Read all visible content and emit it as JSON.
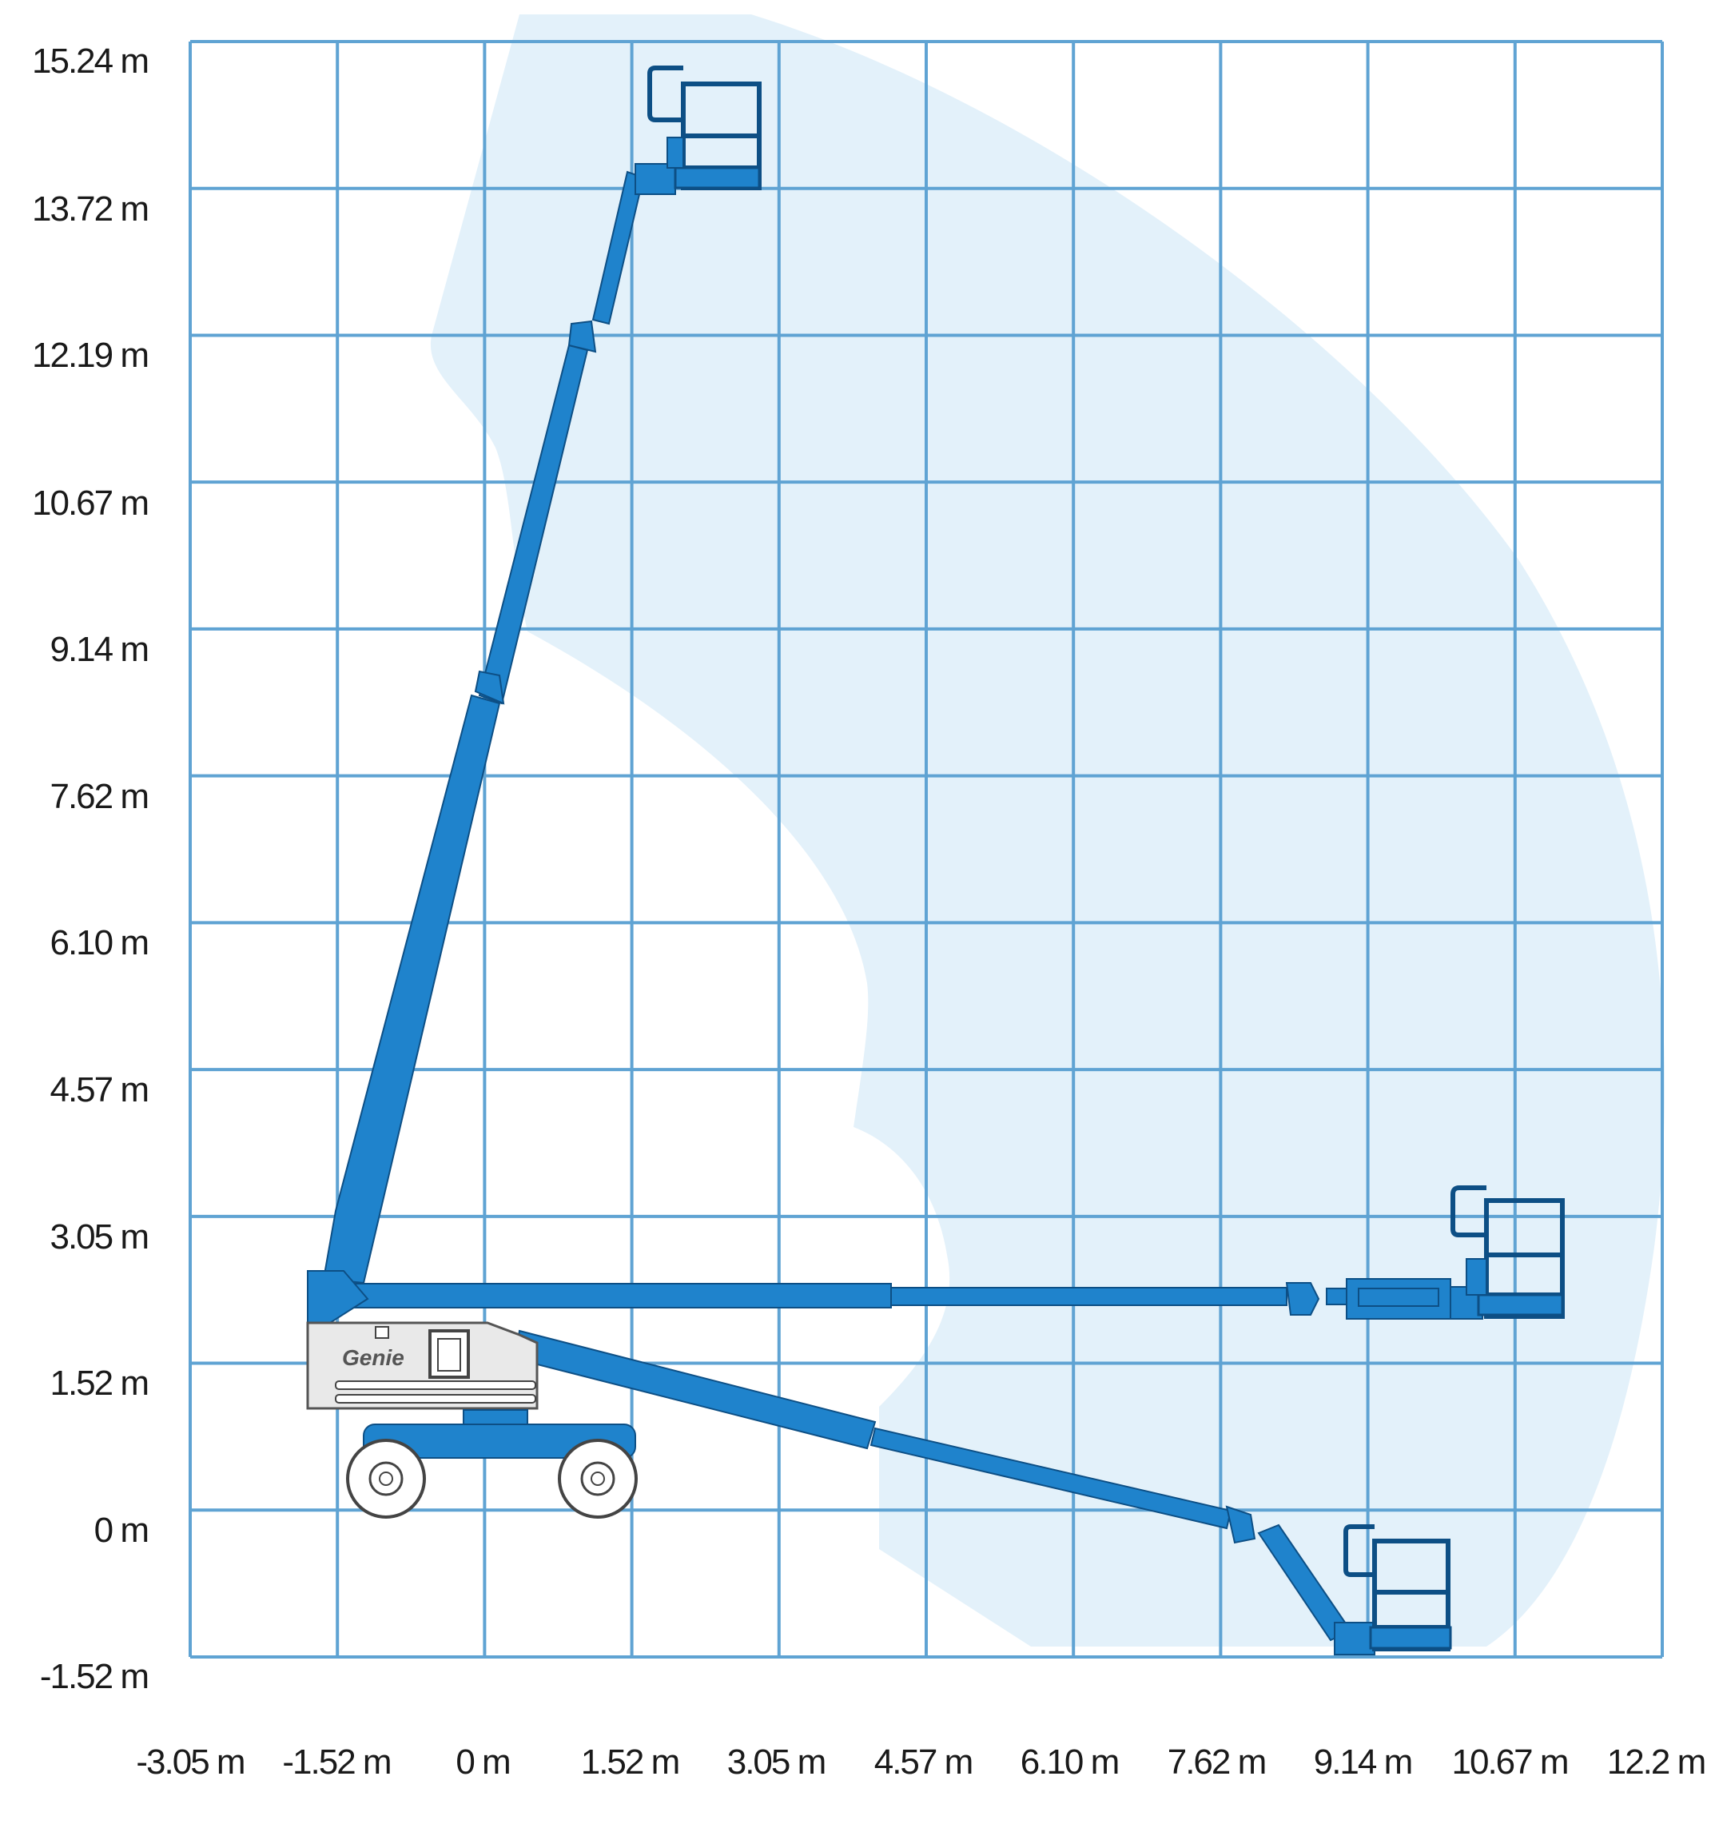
{
  "diagram": {
    "y_axis_labels": [
      "15.24 m",
      "13.72 m",
      "12.19 m",
      "10.67 m",
      "9.14 m",
      "7.62 m",
      "6.10 m",
      "4.57 m",
      "3.05 m",
      "1.52 m",
      "0 m",
      "-1.52 m"
    ],
    "x_axis_labels": [
      "-3.05 m",
      "-1.52 m",
      "0 m",
      "1.52 m",
      "3.05 m",
      "4.57 m",
      "6.10 m",
      "7.62 m",
      "9.14 m",
      "10.67 m",
      "12.2 m"
    ],
    "brand_logo_text": "Genie",
    "colors": {
      "grid": "#5fa3d3",
      "envelope": "#e3f1fa",
      "boom": "#1f83cc",
      "boom_outline": "#0d4f85",
      "chassis": "#e9e9e9"
    }
  }
}
